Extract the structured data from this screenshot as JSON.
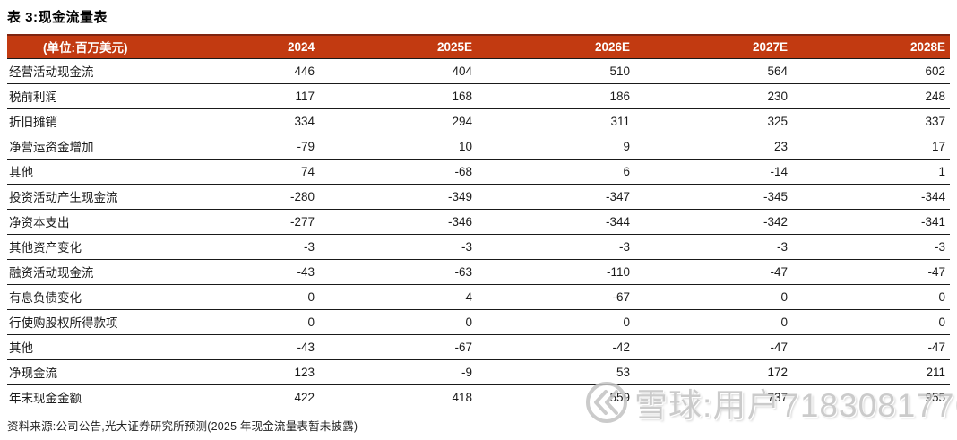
{
  "title": "表 3:现金流量表",
  "colors": {
    "header_bg": "#C23A11",
    "header_top_border": "#7E2410",
    "row_line": "#1a1a1a",
    "watermark_gray": "#c3c3c3"
  },
  "table": {
    "unit_label": "(单位:百万美元)",
    "columns": [
      "2024",
      "2025E",
      "2026E",
      "2027E",
      "2028E"
    ],
    "rows": [
      {
        "label": "经营活动现金流",
        "values": [
          "446",
          "404",
          "510",
          "564",
          "602"
        ]
      },
      {
        "label": "税前利润",
        "values": [
          "117",
          "168",
          "186",
          "230",
          "248"
        ]
      },
      {
        "label": "折旧摊销",
        "values": [
          "334",
          "294",
          "311",
          "325",
          "337"
        ]
      },
      {
        "label": "净营运资金增加",
        "values": [
          "-79",
          "10",
          "9",
          "23",
          "17"
        ]
      },
      {
        "label": "其他",
        "values": [
          "74",
          "-68",
          "6",
          "-14",
          "1"
        ]
      },
      {
        "label": "投资活动产生现金流",
        "values": [
          "-280",
          "-349",
          "-347",
          "-345",
          "-344"
        ]
      },
      {
        "label": "净资本支出",
        "values": [
          "-277",
          "-346",
          "-344",
          "-342",
          "-341"
        ]
      },
      {
        "label": "其他资产变化",
        "values": [
          "-3",
          "-3",
          "-3",
          "-3",
          "-3"
        ]
      },
      {
        "label": "融资活动现金流",
        "values": [
          "-43",
          "-63",
          "-110",
          "-47",
          "-47"
        ]
      },
      {
        "label": "有息负债变化",
        "values": [
          "0",
          "4",
          "-67",
          "0",
          "0"
        ]
      },
      {
        "label": "行使购股权所得款项",
        "values": [
          "0",
          "0",
          "0",
          "0",
          "0"
        ]
      },
      {
        "label": "其他",
        "values": [
          "-43",
          "-67",
          "-42",
          "-47",
          "-47"
        ]
      },
      {
        "label": "净现金流",
        "values": [
          "123",
          "-9",
          "53",
          "172",
          "211"
        ]
      },
      {
        "label": "年末现金金额",
        "values": [
          "422",
          "418",
          "559",
          "737",
          "955"
        ]
      }
    ]
  },
  "footer": {
    "source_note": "资料来源:公司公告,光大证券研究所预测(2025 年现金流量表暂未披露)"
  },
  "watermark": {
    "logo": "xueqiu-logo",
    "text": "雪球:用户7183081776"
  }
}
